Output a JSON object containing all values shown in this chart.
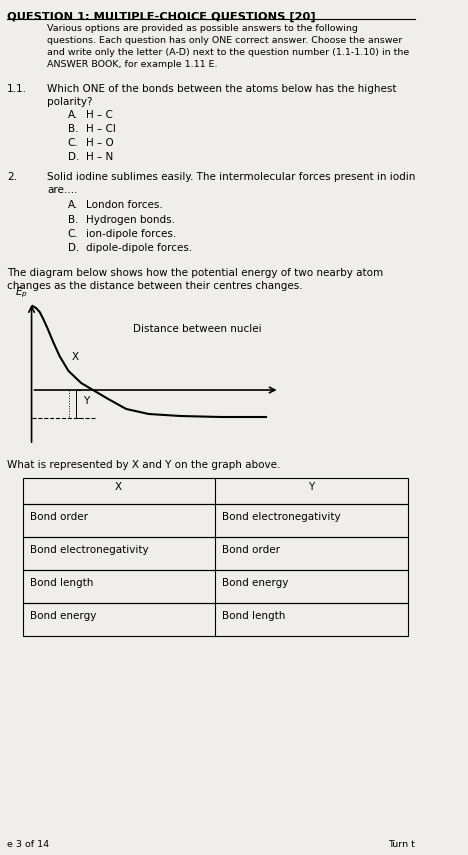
{
  "bg_color": "#f0eeea",
  "title": "QUESTION 1: MULTIPLE-CHOICE QUESTIONS [20]",
  "intro": "Various options are provided as possible answers to the following\nquestions. Each question has only ONE correct answer. Choose the answer\nand write only the letter (A-D) next to the question number (1.1-1.10) in the\nANSWER BOOK, for example 1.11 E.",
  "q1_num": "1.1.",
  "q1_text": "Which ONE of the bonds between the atoms below has the highest\npolarity?",
  "q1_options": [
    [
      "A.",
      "H – C"
    ],
    [
      "B.",
      "H – Cl"
    ],
    [
      "C.",
      "H – O"
    ],
    [
      "D.",
      "H – N"
    ]
  ],
  "q2_num": "2.",
  "q2_text": "Solid iodine sublimes easily. The intermolecular forces present in iodin\nare.…",
  "q2_options": [
    [
      "A.",
      "London forces."
    ],
    [
      "B.",
      "Hydrogen bonds."
    ],
    [
      "C.",
      "ion-dipole forces."
    ],
    [
      "D.",
      "dipole-dipole forces."
    ]
  ],
  "graph_intro": "The diagram below shows how the potential energy of two nearby atom\nchanges as the distance between their centres changes.",
  "graph_question": "What is represented by X and Y on the graph above.",
  "table_headers": [
    "X",
    "Y"
  ],
  "table_rows": [
    [
      "Bond order",
      "Bond electronegativity"
    ],
    [
      "Bond electronegativity",
      "Bond order"
    ],
    [
      "Bond length",
      "Bond energy"
    ],
    [
      "Bond energy",
      "Bond length"
    ]
  ],
  "footer_left": "e 3 of 14",
  "footer_right": "Turn t"
}
